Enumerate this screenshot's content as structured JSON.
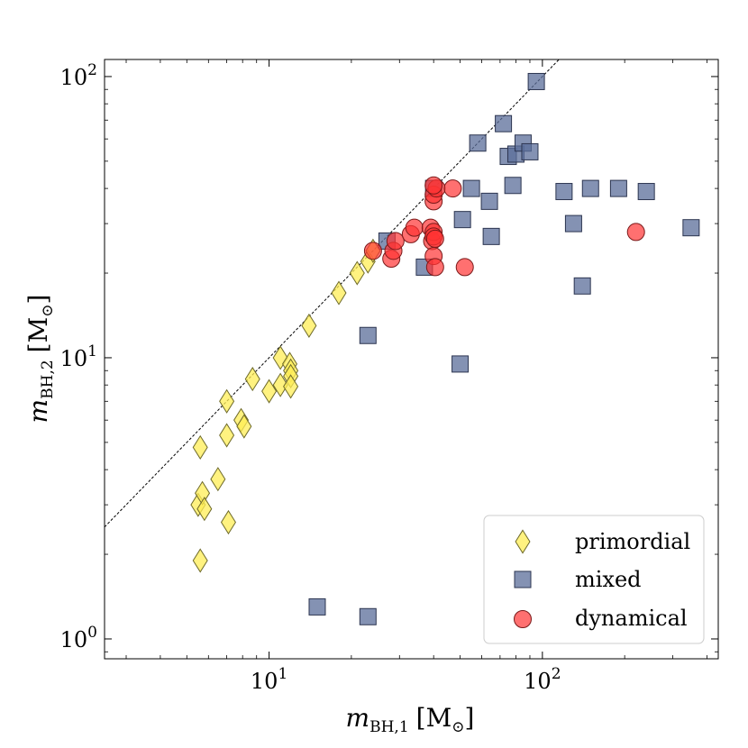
{
  "chart_data": {
    "type": "scatter",
    "xscale": "log",
    "yscale": "log",
    "xlim": [
      2.5,
      440
    ],
    "ylim": [
      0.85,
      115
    ],
    "xlabel": "m_BH,1 [M_⊙]",
    "ylabel": "m_BH,2 [M_⊙]",
    "xlabel_main": "m",
    "xlabel_sub": "BH,1",
    "xlabel_unit": "[M",
    "xlabel_unit_sub": "⊙",
    "xlabel_close": "]",
    "ylabel_main": "m",
    "ylabel_sub": "BH,2",
    "ylabel_unit": "[M",
    "ylabel_unit_sub": "⊙",
    "ylabel_close": "]",
    "x_ticks": [
      {
        "value": 10,
        "base": "10",
        "exp": "1"
      },
      {
        "value": 100,
        "base": "10",
        "exp": "2"
      }
    ],
    "y_ticks": [
      {
        "value": 1,
        "base": "10",
        "exp": "0"
      },
      {
        "value": 10,
        "base": "10",
        "exp": "1"
      },
      {
        "value": 100,
        "base": "10",
        "exp": "2"
      }
    ],
    "reference_line": {
      "label": "m_BH,2 = m_BH,1",
      "style": "dashed"
    },
    "legend_position": "lower-right",
    "series": [
      {
        "name": "primordial",
        "marker": "diamond",
        "color": "#ffee55",
        "edge": "#6e6a2a",
        "x": [
          5.6,
          5.5,
          5.7,
          5.8,
          5.6,
          7.0,
          7.0,
          7.1,
          6.5,
          7.9,
          8.1,
          8.7,
          10.0,
          11.0,
          11.0,
          11.9,
          12.0,
          12.0,
          12.0,
          14.0,
          18.0,
          21.0,
          23.0,
          24.0
        ],
        "y": [
          4.8,
          3.0,
          3.3,
          2.9,
          1.9,
          7.0,
          5.3,
          2.6,
          3.7,
          6.0,
          5.7,
          8.4,
          7.6,
          8.0,
          10.0,
          9.5,
          9.0,
          8.6,
          7.9,
          13.0,
          17.0,
          20.0,
          22.0,
          24.0
        ]
      },
      {
        "name": "mixed",
        "marker": "square",
        "color": "#5b6e9a",
        "edge": "#2c3550",
        "x": [
          15.0,
          23.0,
          23.0,
          27.0,
          37.0,
          40.0,
          50.0,
          51.0,
          55.0,
          58.0,
          64.0,
          65.0,
          72.0,
          75.0,
          78.0,
          80.0,
          85.0,
          90.0,
          95.0,
          120.0,
          130.0,
          140.0,
          150.0,
          190.0,
          240.0,
          350.0
        ],
        "y": [
          1.3,
          1.2,
          12.0,
          26.0,
          21.0,
          40.0,
          9.5,
          31.0,
          40.0,
          58.0,
          36.0,
          27.0,
          68.0,
          52.0,
          41.0,
          53.0,
          58.0,
          54.0,
          96.0,
          39.0,
          30.0,
          18.0,
          40.0,
          40.0,
          39.0,
          29.0
        ]
      },
      {
        "name": "dynamical",
        "marker": "circle",
        "color": "#ff3333",
        "edge": "#7a1a1a",
        "x": [
          24.0,
          28.0,
          28.5,
          29.0,
          33.0,
          34.0,
          39.0,
          39.5,
          40.0,
          40.0,
          40.5,
          40.0,
          40.5,
          40.0,
          40.0,
          41.0,
          40.0,
          47.0,
          52.0,
          220.0
        ],
        "y": [
          24.0,
          22.5,
          24.0,
          26.0,
          27.5,
          29.0,
          29.0,
          26.0,
          28.0,
          27.0,
          26.5,
          23.0,
          21.0,
          36.0,
          38.0,
          40.0,
          41.0,
          40.0,
          21.0,
          28.0
        ]
      }
    ]
  }
}
